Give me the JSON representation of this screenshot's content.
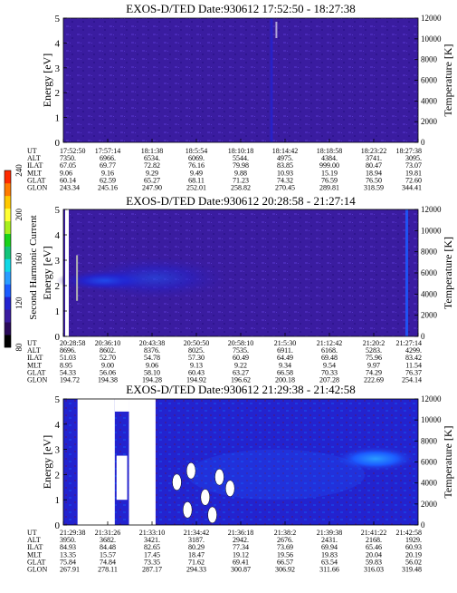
{
  "colorbar": {
    "label": "Second Harmonic Current",
    "ticks": [
      "80",
      "120",
      "160",
      "200",
      "240"
    ],
    "colors": [
      "#000000",
      "#2a0a5a",
      "#3a1ca0",
      "#2323cf",
      "#1b5bff",
      "#2a9cff",
      "#10d8e6",
      "#13c47a",
      "#19d319",
      "#a8ef1c",
      "#ffff33",
      "#ffc800",
      "#ff7a00",
      "#ff2a00"
    ]
  },
  "orbit_labels": [
    "UT",
    "ALT",
    "ILAT",
    "MLT",
    "GLAT",
    "GLON"
  ],
  "chart_data": [
    {
      "type": "heatmap",
      "title": "EXOS-D/TED   Date:930612   17:52:50 - 18:27:38",
      "ylabel": "Energy [eV]",
      "y2label": "Temperature [K]",
      "ylim": [
        0,
        5
      ],
      "y_ticks": [
        "0",
        "1",
        "2",
        "3",
        "4",
        "5"
      ],
      "y2lim": [
        0,
        12000
      ],
      "y2_ticks": [
        "0",
        "2000",
        "4000",
        "6000",
        "8000",
        "10000",
        "12000"
      ],
      "background_color": "#3a1ca0",
      "orbit": {
        "UT": [
          "17:52:50",
          "17:57:14",
          "18:1:38",
          "18:5:54",
          "18:10:18",
          "18:14:42",
          "18:18:58",
          "18:23:22",
          "18:27:38"
        ],
        "ALT": [
          "7350.",
          "6966.",
          "6534.",
          "6069.",
          "5544.",
          "4975.",
          "4384.",
          "3741.",
          "3095."
        ],
        "ILAT": [
          "67.05",
          "69.77",
          "72.82",
          "76.16",
          "79.98",
          "83.85",
          "999.00",
          "80.47",
          "73.07"
        ],
        "MLT": [
          "9.06",
          "9.16",
          "9.29",
          "9.49",
          "9.88",
          "10.93",
          "15.19",
          "18.94",
          "19.81"
        ],
        "GLAT": [
          "60.14",
          "62.59",
          "65.27",
          "68.11",
          "71.23",
          "74.32",
          "76.59",
          "76.50",
          "72.60"
        ],
        "GLON": [
          "243.34",
          "245.16",
          "247.90",
          "252.01",
          "258.82",
          "270.45",
          "289.81",
          "318.59",
          "344.41"
        ]
      }
    },
    {
      "type": "heatmap",
      "title": "EXOS-D/TED   Date:930612   20:28:58 - 21:27:14",
      "ylabel": "Energy [eV]",
      "y2label": "Temperature [K]",
      "ylim": [
        0,
        5
      ],
      "y_ticks": [
        "0",
        "1",
        "2",
        "3",
        "4",
        "5"
      ],
      "y2lim": [
        0,
        12000
      ],
      "y2_ticks": [
        "0",
        "2000",
        "4000",
        "6000",
        "8000",
        "10000",
        "12000"
      ],
      "background_color": "#3a1ca0",
      "orbit": {
        "UT": [
          "20:28:58",
          "20:36:10",
          "20:43:38",
          "20:50:50",
          "20:58:10",
          "21:5:30",
          "21:12:42",
          "21:20:2",
          "21:27:14"
        ],
        "ALT": [
          "8696.",
          "8602.",
          "8376.",
          "8025.",
          "7535.",
          "6911.",
          "6168.",
          "5283.",
          "4299."
        ],
        "ILAT": [
          "51.03",
          "52.70",
          "54.78",
          "57.30",
          "60.49",
          "64.49",
          "69.48",
          "75.96",
          "83.42"
        ],
        "MLT": [
          "8.95",
          "9.00",
          "9.06",
          "9.13",
          "9.22",
          "9.34",
          "9.54",
          "9.97",
          "11.54"
        ],
        "GLAT": [
          "54.33",
          "56.06",
          "58.10",
          "60.43",
          "63.27",
          "66.58",
          "70.33",
          "74.29",
          "76.37"
        ],
        "GLON": [
          "194.72",
          "194.38",
          "194.28",
          "194.92",
          "196.62",
          "200.18",
          "207.28",
          "222.69",
          "254.14"
        ]
      }
    },
    {
      "type": "heatmap",
      "title": "EXOS-D/TED   Date:930612   21:29:38 - 21:42:58",
      "ylabel": "Energy [eV]",
      "y2label": "Temperature [K]",
      "ylim": [
        0,
        5
      ],
      "y_ticks": [
        "0",
        "1",
        "2",
        "3",
        "4",
        "5"
      ],
      "y2lim": [
        0,
        12000
      ],
      "y2_ticks": [
        "0",
        "2000",
        "4000",
        "6000",
        "8000",
        "10000",
        "12000"
      ],
      "background_color": "#2323cf",
      "orbit": {
        "UT": [
          "21:29:38",
          "21:31:26",
          "21:33:10",
          "21:34:42",
          "21:36:18",
          "21:38:2",
          "21:39:38",
          "21:41:22",
          "21:42:58"
        ],
        "ALT": [
          "3950.",
          "3682.",
          "3421.",
          "3187.",
          "2942.",
          "2676.",
          "2431.",
          "2168.",
          "1929."
        ],
        "ILAT": [
          "84.93",
          "84.48",
          "82.65",
          "80.29",
          "77.34",
          "73.69",
          "69.94",
          "65.46",
          "60.93"
        ],
        "MLT": [
          "13.35",
          "15.57",
          "17.45",
          "18.47",
          "19.12",
          "19.56",
          "19.83",
          "20.04",
          "20.19"
        ],
        "GLAT": [
          "75.84",
          "74.84",
          "73.35",
          "71.62",
          "69.41",
          "66.57",
          "63.54",
          "59.83",
          "56.02"
        ],
        "GLON": [
          "267.91",
          "278.11",
          "287.17",
          "294.33",
          "300.87",
          "306.92",
          "311.66",
          "316.03",
          "319.48"
        ]
      }
    }
  ]
}
